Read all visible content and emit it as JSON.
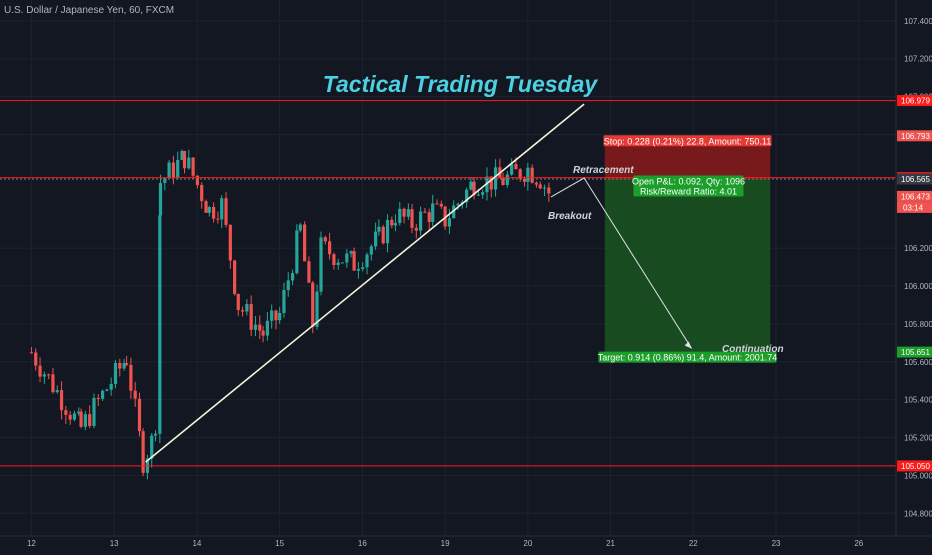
{
  "header": {
    "symbol_title": "U.S. Dollar / Japanese Yen, 60, FXCM"
  },
  "annotations": {
    "headline": "Tactical Trading Tuesday",
    "retracement": "Retracement",
    "breakout": "Breakout",
    "continuation": "Continuation"
  },
  "position": {
    "stop_label": "Stop: 0.228 (0.21%) 22.8, Amount: 750.11",
    "pnl_label": "Open P&L: 0.092, Qty: 1096",
    "rr_label": "Risk/Reward Ratio: 4.01",
    "target_label": "Target: 0.914 (0.86%) 91.4, Amount: 2001.74"
  },
  "colors": {
    "background": "#131722",
    "up": "#26a69a",
    "down": "#ef5350",
    "headline": "#4dd0e1",
    "level_line": "#ff1a1a",
    "stop_zone": "#8b1a1a",
    "target_zone": "#1b5e20"
  },
  "chart_data": {
    "type": "candlestick",
    "title": "U.S. Dollar / Japanese Yen, 60, FXCM",
    "y_ticks": [
      104.8,
      105.0,
      105.2,
      105.4,
      105.6,
      105.8,
      106.0,
      106.2,
      106.8,
      107.0,
      107.2,
      107.4
    ],
    "ylim": [
      104.68,
      107.51
    ],
    "x_ticks": [
      {
        "label": "12",
        "day": 12
      },
      {
        "label": "13",
        "day": 13
      },
      {
        "label": "14",
        "day": 14
      },
      {
        "label": "15",
        "day": 15
      },
      {
        "label": "16",
        "day": 16
      },
      {
        "label": "19",
        "day": 17
      },
      {
        "label": "20",
        "day": 18
      },
      {
        "label": "21",
        "day": 19
      },
      {
        "label": "22",
        "day": 20
      },
      {
        "label": "23",
        "day": 21
      },
      {
        "label": "26",
        "day": 22
      }
    ],
    "xlim": [
      11.62,
      22.45
    ],
    "levels": [
      {
        "price": 106.979,
        "label": "106.979"
      },
      {
        "price": 106.572,
        "label": "106.572"
      },
      {
        "price": 105.05,
        "label": "105.050"
      }
    ],
    "price_tags": [
      {
        "price": 106.565,
        "label": "106.565",
        "bg": "#363a45"
      },
      {
        "price": 106.473,
        "label": "106.473",
        "bg": "#ef5350"
      },
      {
        "price": 106.793,
        "label": "106.793",
        "bg": "#ef5350"
      },
      {
        "price": 105.651,
        "label": "105.651",
        "bg": "#1b9e2a"
      }
    ],
    "countdown": "03:14",
    "trend_line": [
      {
        "day": 13.38,
        "price": 105.07
      },
      {
        "day": 18.68,
        "price": 106.96
      }
    ],
    "position": {
      "entry": 106.565,
      "stop": 106.793,
      "target": 105.651,
      "day_start": 18.93,
      "day_end": 20.93
    },
    "projection": [
      {
        "day": 18.28,
        "price": 106.47
      },
      {
        "day": 18.68,
        "price": 106.57
      },
      {
        "day": 19.98,
        "price": 105.67
      }
    ],
    "anchors": [
      {
        "day": 12.0,
        "price": 105.65
      },
      {
        "day": 12.6,
        "price": 105.25
      },
      {
        "day": 13.15,
        "price": 105.62
      },
      {
        "day": 13.35,
        "price": 105.08
      },
      {
        "day": 13.5,
        "price": 105.22
      },
      {
        "day": 13.56,
        "price": 106.55
      },
      {
        "day": 13.85,
        "price": 106.68
      },
      {
        "day": 14.15,
        "price": 106.4
      },
      {
        "day": 14.3,
        "price": 106.43
      },
      {
        "day": 14.5,
        "price": 105.9
      },
      {
        "day": 14.8,
        "price": 105.75
      },
      {
        "day": 15.0,
        "price": 105.85
      },
      {
        "day": 15.25,
        "price": 106.3
      },
      {
        "day": 15.4,
        "price": 105.8
      },
      {
        "day": 15.5,
        "price": 106.2
      },
      {
        "day": 15.9,
        "price": 106.12
      },
      {
        "day": 16.2,
        "price": 106.25
      },
      {
        "day": 16.4,
        "price": 106.38
      },
      {
        "day": 16.6,
        "price": 106.33
      },
      {
        "day": 16.85,
        "price": 106.4
      },
      {
        "day": 17.0,
        "price": 106.35
      },
      {
        "day": 17.35,
        "price": 106.55
      },
      {
        "day": 17.7,
        "price": 106.56
      },
      {
        "day": 18.0,
        "price": 106.62
      },
      {
        "day": 18.15,
        "price": 106.57
      },
      {
        "day": 18.3,
        "price": 106.46
      }
    ]
  }
}
